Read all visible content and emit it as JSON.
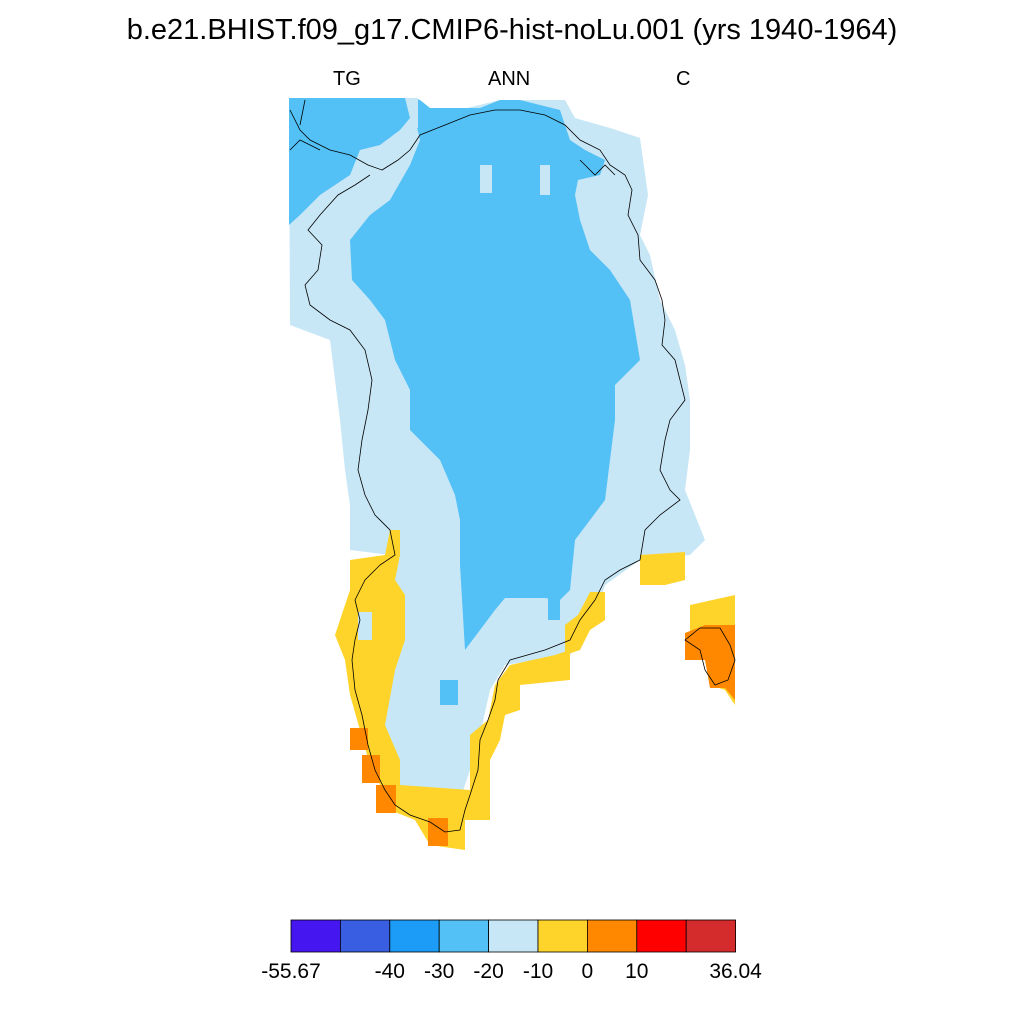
{
  "title": "b.e21.BHIST.f09_g17.CMIP6-hist-noLu.001 (yrs 1940-1964)",
  "subtitle": {
    "left": "TG",
    "center": "ANN",
    "right": "C"
  },
  "colorbar": {
    "colors": [
      "#4616f0",
      "#3a5ee2",
      "#1c9bf7",
      "#53c1f5",
      "#c8e7f6",
      "#ffd42a",
      "#ff8800",
      "#ff0000",
      "#d42c2c"
    ],
    "labels": [
      "-55.67",
      "-40",
      "-30",
      "-20",
      "-10",
      "0",
      "10",
      "36.04"
    ],
    "label_boundary_index": [
      0,
      2,
      3,
      4,
      5,
      6,
      7,
      9
    ]
  },
  "map_colors": {
    "very_cold": "#53c1f5",
    "cold": "#c8e7f6",
    "mild": "#ffd42a",
    "warm": "#ff8800",
    "coastline": "#000000"
  }
}
